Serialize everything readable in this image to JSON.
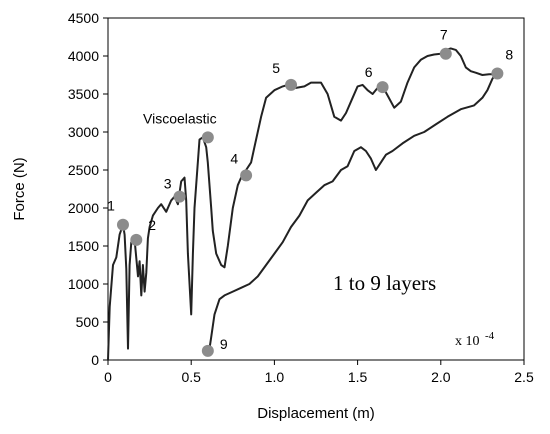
{
  "chart_data": {
    "type": "line",
    "title": "",
    "xlabel": "Displacement (m)",
    "ylabel": "Force (N)",
    "xlim": [
      0,
      2.5
    ],
    "ylim": [
      0,
      4500
    ],
    "x_ticks": [
      "0",
      "0.5",
      "1.0",
      "1.5",
      "2.0",
      "2.5"
    ],
    "y_ticks": [
      "0",
      "500",
      "1000",
      "1500",
      "2000",
      "2500",
      "3000",
      "3500",
      "4000",
      "4500"
    ],
    "x_multiplier_label": "x 10",
    "x_multiplier_exponent": "-4",
    "grid": false,
    "series": [
      {
        "x": [
          0.0,
          0.01,
          0.03,
          0.05,
          0.07,
          0.09,
          0.1,
          0.11,
          0.12,
          0.13,
          0.14,
          0.16,
          0.18,
          0.19,
          0.2,
          0.21,
          0.22,
          0.23,
          0.24,
          0.25,
          0.27,
          0.3,
          0.32,
          0.35,
          0.38,
          0.4,
          0.42,
          0.44,
          0.46,
          0.47,
          0.48,
          0.5,
          0.51,
          0.52,
          0.55,
          0.57,
          0.59,
          0.6,
          0.62,
          0.63,
          0.65,
          0.68,
          0.7,
          0.72,
          0.75,
          0.78,
          0.8,
          0.83,
          0.86,
          0.88,
          0.92,
          0.95,
          1.0,
          1.05,
          1.08,
          1.1,
          1.13,
          1.18,
          1.22,
          1.28,
          1.32,
          1.36,
          1.4,
          1.43,
          1.47,
          1.5,
          1.53,
          1.56,
          1.59,
          1.62,
          1.65,
          1.68,
          1.72,
          1.76,
          1.8,
          1.84,
          1.88,
          1.92,
          1.96,
          2.0,
          2.03,
          2.06,
          2.09,
          2.12,
          2.15,
          2.18,
          2.21,
          2.25,
          2.29,
          2.33,
          2.31,
          2.28,
          2.25,
          2.2,
          2.12,
          2.04,
          1.97,
          1.9,
          1.84,
          1.77,
          1.71,
          1.67,
          1.64,
          1.61,
          1.58,
          1.55,
          1.52,
          1.48,
          1.44,
          1.4,
          1.35,
          1.3,
          1.25,
          1.2,
          1.15,
          1.1,
          1.05,
          1.0,
          0.95,
          0.9,
          0.85,
          0.8,
          0.75,
          0.7,
          0.67,
          0.64,
          0.62,
          0.61,
          0.6
        ],
        "y": [
          0,
          700,
          1250,
          1350,
          1650,
          1780,
          1650,
          1200,
          150,
          1250,
          1550,
          1580,
          1100,
          1300,
          850,
          1250,
          900,
          1150,
          1600,
          1750,
          1900,
          2000,
          2050,
          1950,
          2100,
          2150,
          2050,
          2350,
          2400,
          2100,
          1400,
          600,
          1400,
          2000,
          2900,
          2930,
          2800,
          2600,
          2000,
          1700,
          1400,
          1250,
          1220,
          1500,
          2000,
          2300,
          2400,
          2500,
          2600,
          2800,
          3200,
          3450,
          3550,
          3600,
          3620,
          3640,
          3580,
          3600,
          3650,
          3650,
          3500,
          3200,
          3150,
          3250,
          3450,
          3600,
          3620,
          3550,
          3500,
          3580,
          3600,
          3480,
          3320,
          3400,
          3650,
          3850,
          3950,
          4000,
          4020,
          4030,
          4080,
          4100,
          4080,
          4000,
          3850,
          3800,
          3780,
          3750,
          3760,
          3760,
          3700,
          3550,
          3450,
          3350,
          3300,
          3200,
          3100,
          3000,
          2950,
          2850,
          2750,
          2700,
          2600,
          2500,
          2650,
          2750,
          2800,
          2750,
          2550,
          2500,
          2350,
          2300,
          2200,
          2100,
          1900,
          1750,
          1550,
          1400,
          1250,
          1100,
          1000,
          950,
          900,
          850,
          800,
          600,
          300,
          150,
          120
        ]
      }
    ],
    "points": [
      {
        "label": "1",
        "x": 0.09,
        "y": 1780
      },
      {
        "label": "2",
        "x": 0.17,
        "y": 1580
      },
      {
        "label": "3",
        "x": 0.43,
        "y": 2150
      },
      {
        "label": "Viscoelastic",
        "x": 0.6,
        "y": 2930
      },
      {
        "label": "4",
        "x": 0.83,
        "y": 2430
      },
      {
        "label": "5",
        "x": 1.1,
        "y": 3620
      },
      {
        "label": "6",
        "x": 1.65,
        "y": 3590
      },
      {
        "label": "7",
        "x": 2.03,
        "y": 4030
      },
      {
        "label": "8",
        "x": 2.34,
        "y": 3770
      },
      {
        "label": "9",
        "x": 0.6,
        "y": 120
      }
    ],
    "annotations": {
      "layers": "1 to 9 layers"
    },
    "colors": {
      "line": "#222222",
      "marker": "#8c8c8c"
    }
  }
}
